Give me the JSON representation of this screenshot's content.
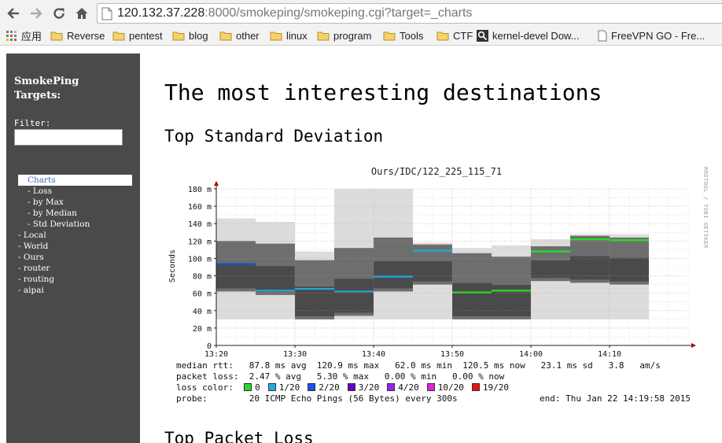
{
  "browser": {
    "url_host": "120.132.37.228",
    "url_rest": ":8000/smokeping/smokeping.cgi?target=_charts",
    "bookmarks": [
      {
        "label": "应用",
        "icon": "apps-grid-icon"
      },
      {
        "label": "Reverse",
        "icon": "folder-icon"
      },
      {
        "label": "pentest",
        "icon": "folder-icon"
      },
      {
        "label": "blog",
        "icon": "folder-icon"
      },
      {
        "label": "other",
        "icon": "folder-icon"
      },
      {
        "label": "linux",
        "icon": "folder-icon"
      },
      {
        "label": "program",
        "icon": "folder-icon"
      },
      {
        "label": "Tools",
        "icon": "folder-icon"
      },
      {
        "label": "CTF",
        "icon": "folder-icon"
      },
      {
        "label": "kernel-devel Dow...",
        "icon": "search-favicon-icon"
      },
      {
        "label": "FreeVPN GO - Fre...",
        "icon": "page-icon"
      }
    ]
  },
  "sidebar": {
    "title_line1": "SmokePing",
    "title_line2": "Targets:",
    "filter_label": "Filter:",
    "filter_value": "",
    "menu": [
      {
        "label": "Charts",
        "level": "active"
      },
      {
        "label": "- Loss",
        "level": "sub"
      },
      {
        "label": "- by Max",
        "level": "sub"
      },
      {
        "label": "- by Median",
        "level": "sub"
      },
      {
        "label": "- Std Deviation",
        "level": "sub"
      },
      {
        "label": "- Local",
        "level": "top"
      },
      {
        "label": "- World",
        "level": "top"
      },
      {
        "label": "- Ours",
        "level": "top"
      },
      {
        "label": "- router",
        "level": "top"
      },
      {
        "label": "- routing",
        "level": "top"
      },
      {
        "label": "- aipai",
        "level": "top"
      }
    ]
  },
  "main": {
    "heading": "The most interesting destinations",
    "section1": "Top Standard Deviation",
    "section2": "Top Packet Loss"
  },
  "chart_data": {
    "type": "area",
    "title": "Ours/IDC/122_225_115_71",
    "ylabel": "Seconds",
    "ylim": [
      0,
      180
    ],
    "y_tick_labels": [
      "0",
      "20 m",
      "40 m",
      "60 m",
      "80 m",
      "100 m",
      "120 m",
      "140 m",
      "160 m",
      "180 m"
    ],
    "y_ticks": [
      0,
      20,
      40,
      60,
      80,
      100,
      120,
      140,
      160,
      180
    ],
    "x_tick_labels": [
      "13:20",
      "13:30",
      "13:40",
      "13:50",
      "14:00",
      "14:10"
    ],
    "x_ticks": [
      "13:20",
      "13:30",
      "13:40",
      "13:50",
      "14:00",
      "14:10"
    ],
    "xlim": [
      "13:20",
      "14:25"
    ],
    "grid": true,
    "side_credit": "RRDTOOL / TOBI OETIKER",
    "intervals": [
      {
        "start": "13:20",
        "end": "13:25",
        "median": 94,
        "color": "#0f5fe0",
        "min": 30,
        "max": 146,
        "q1": 62,
        "q3": 120
      },
      {
        "start": "13:25",
        "end": "13:30",
        "median": 63,
        "color": "#1fa7e0",
        "min": 30,
        "max": 142,
        "q1": 58,
        "q3": 117
      },
      {
        "start": "13:30",
        "end": "13:35",
        "median": 65,
        "color": "#1fa7e0",
        "min": 30,
        "max": 108,
        "q1": 30,
        "q3": 98
      },
      {
        "start": "13:35",
        "end": "13:40",
        "median": 62,
        "color": "#1fa7e0",
        "min": 30,
        "max": 180,
        "q1": 34,
        "q3": 112
      },
      {
        "start": "13:40",
        "end": "13:45",
        "median": 79,
        "color": "#1fa7e0",
        "min": 30,
        "max": 180,
        "q1": 62,
        "q3": 124
      },
      {
        "start": "13:45",
        "end": "13:50",
        "median": 109,
        "color": "#1fa7e0",
        "min": 30,
        "max": 118,
        "q1": 70,
        "q3": 116
      },
      {
        "start": "13:50",
        "end": "13:55",
        "median": 61,
        "color": "#22e022",
        "min": 30,
        "max": 112,
        "q1": 30,
        "q3": 106
      },
      {
        "start": "13:55",
        "end": "14:00",
        "median": 63,
        "color": "#22e022",
        "min": 30,
        "max": 115,
        "q1": 30,
        "q3": 102
      },
      {
        "start": "14:00",
        "end": "14:05",
        "median": 108,
        "color": "#22e022",
        "min": 30,
        "max": 122,
        "q1": 74,
        "q3": 114
      },
      {
        "start": "14:05",
        "end": "14:10",
        "median": 122,
        "color": "#22e022",
        "min": 30,
        "max": 128,
        "q1": 72,
        "q3": 126
      },
      {
        "start": "14:10",
        "end": "14:15",
        "median": 121,
        "color": "#22e022",
        "min": 30,
        "max": 128,
        "q1": 70,
        "q3": 124
      }
    ]
  },
  "legend": {
    "median_rtt": "median rtt:   87.8 ms avg  120.9 ms max   62.0 ms min  120.5 ms now   23.1 ms sd   3.8   am/s",
    "packet_loss": "packet loss:  2.47 % avg   5.30 % max   0.00 % min   0.00 % now",
    "loss_color_label": "loss color:  ",
    "loss_colors": [
      {
        "label": "0",
        "color": "#22dd22"
      },
      {
        "label": "1/20",
        "color": "#22aaee"
      },
      {
        "label": "2/20",
        "color": "#1155ee"
      },
      {
        "label": "3/20",
        "color": "#6600cc"
      },
      {
        "label": "4/20",
        "color": "#9922ee"
      },
      {
        "label": "10/20",
        "color": "#dd22dd"
      },
      {
        "label": "19/20",
        "color": "#ee1111"
      }
    ],
    "probe": "probe:        20 ICMP Echo Pings (56 Bytes) every 300s",
    "end": "end: Thu Jan 22 14:19:58 2015"
  }
}
